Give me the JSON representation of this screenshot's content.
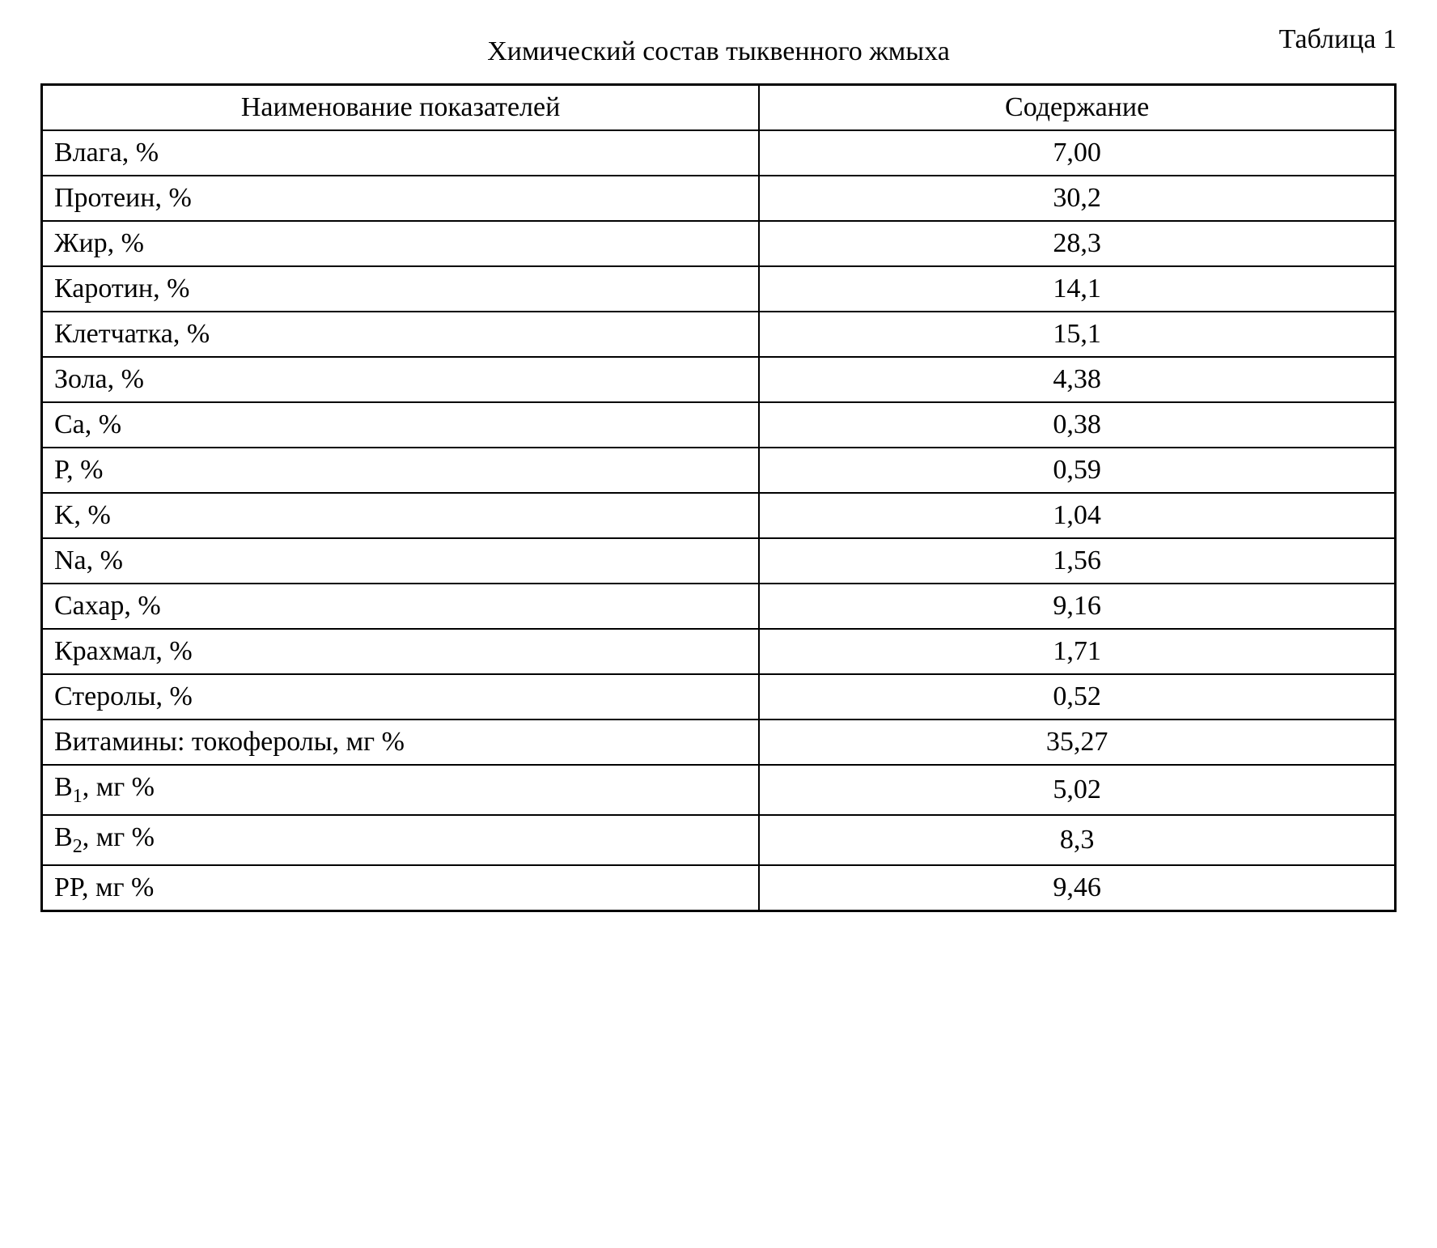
{
  "header": {
    "title": "Химический состав тыквенного жмыха",
    "table_label": "Таблица 1"
  },
  "table": {
    "type": "table",
    "columns": [
      "Наименование показателей",
      "Содержание"
    ],
    "rows": [
      {
        "param": "Влага, %",
        "value": "7,00"
      },
      {
        "param": "Протеин, %",
        "value": "30,2"
      },
      {
        "param": "Жир, %",
        "value": "28,3"
      },
      {
        "param": "Каротин, %",
        "value": "14,1"
      },
      {
        "param": "Клетчатка, %",
        "value": "15,1"
      },
      {
        "param": "Зола, %",
        "value": "4,38"
      },
      {
        "param": "Ca, %",
        "value": "0,38"
      },
      {
        "param": "P, %",
        "value": "0,59"
      },
      {
        "param": "K, %",
        "value": "1,04"
      },
      {
        "param": "Na, %",
        "value": "1,56"
      },
      {
        "param": "Сахар, %",
        "value": "9,16"
      },
      {
        "param": "Крахмал, %",
        "value": "1,71"
      },
      {
        "param": "Стеролы, %",
        "value": "0,52"
      },
      {
        "param": "Витамины: токоферолы, мг %",
        "value": "35,27"
      },
      {
        "param": "B|1|, мг %",
        "value": "5,02"
      },
      {
        "param": "B|2|, мг %",
        "value": "8,3"
      },
      {
        "param": "PP, мг %",
        "value": "9,46"
      }
    ],
    "border_color": "#000000",
    "background_color": "#ffffff",
    "text_color": "#000000",
    "header_fontsize": 34,
    "cell_fontsize": 34,
    "column_widths": [
      "53%",
      "47%"
    ],
    "column_alignment": [
      "left",
      "center"
    ]
  }
}
